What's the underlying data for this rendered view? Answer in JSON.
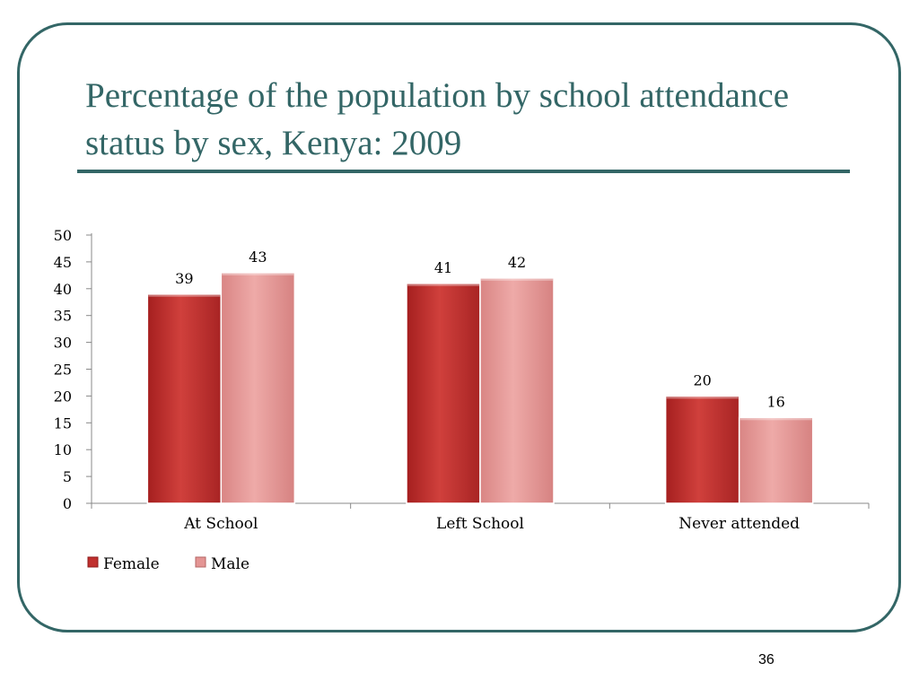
{
  "slide": {
    "title": "Percentage of the population by school attendance status by sex, Kenya: 2009",
    "number": "36",
    "frame_color": "#336666"
  },
  "chart_data": {
    "type": "bar",
    "title": "",
    "xlabel": "",
    "ylabel": "",
    "categories": [
      "At School",
      "Left School",
      "Never attended"
    ],
    "series": [
      {
        "name": "Female",
        "values": [
          39,
          41,
          20
        ],
        "labels": [
          "39",
          "41",
          "20"
        ],
        "color": "#c0302e"
      },
      {
        "name": "Male",
        "values": [
          43,
          42,
          16
        ],
        "labels": [
          "43",
          "42",
          "16"
        ],
        "color": "#e49594"
      }
    ],
    "ylim": [
      0,
      50
    ],
    "yticks": [
      0,
      5,
      10,
      15,
      20,
      25,
      30,
      35,
      40,
      45,
      50
    ],
    "grid": false,
    "legend": "bottom-left"
  }
}
